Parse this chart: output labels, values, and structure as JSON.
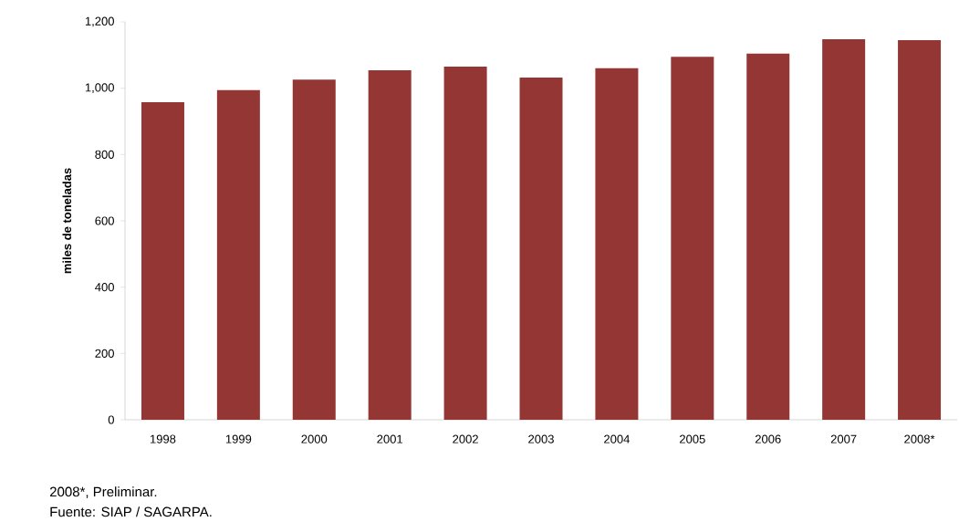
{
  "chart_data": {
    "type": "bar",
    "ylabel": "miles de toneladas",
    "categories": [
      "1998",
      "1999",
      "2000",
      "2001",
      "2002",
      "2003",
      "2004",
      "2005",
      "2006",
      "2007",
      "2008*"
    ],
    "values": [
      958,
      994,
      1026,
      1054,
      1065,
      1032,
      1060,
      1095,
      1104,
      1148,
      1145
    ],
    "color": "#943634",
    "ylim": [
      0,
      1200
    ],
    "yticks": [
      0,
      {
        "value": 200,
        "label": "200"
      },
      {
        "value": 400,
        "label": "400"
      },
      {
        "value": 600,
        "label": "600"
      },
      {
        "value": 800,
        "label": "800"
      },
      {
        "value": 1000,
        "label": "1,000"
      },
      {
        "value": 1200,
        "label": "1,200"
      }
    ],
    "grid": false,
    "annotations": [
      "2008*, Preliminar.",
      "Fuente: SIAP / SAGARPA."
    ]
  }
}
